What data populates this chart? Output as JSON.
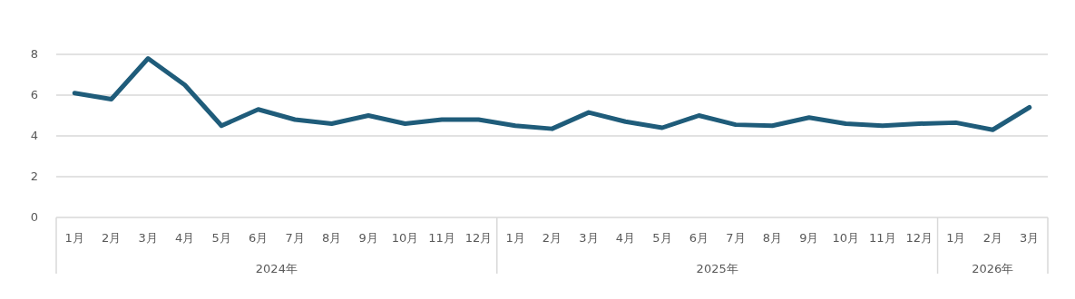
{
  "chart_data": {
    "type": "line",
    "categories": [
      "1月",
      "2月",
      "3月",
      "4月",
      "5月",
      "6月",
      "7月",
      "8月",
      "9月",
      "10月",
      "11月",
      "12月",
      "1月",
      "2月",
      "3月",
      "4月",
      "5月",
      "6月",
      "7月",
      "8月",
      "9月",
      "10月",
      "11月",
      "12月",
      "1月",
      "2月",
      "3月"
    ],
    "series": [
      {
        "color": "#1f5c7a",
        "values": [
          6.1,
          5.8,
          7.8,
          6.5,
          4.5,
          5.3,
          4.8,
          4.6,
          5.0,
          4.6,
          4.8,
          4.8,
          4.5,
          4.35,
          5.15,
          4.7,
          4.4,
          5.0,
          4.55,
          4.5,
          4.9,
          4.6,
          4.5,
          4.6,
          4.65,
          4.3,
          5.4
        ]
      }
    ],
    "annotations": [
      "2024年",
      "2025年",
      "2026年"
    ],
    "ylim": [
      0,
      8
    ],
    "yticks": [
      0,
      2,
      4,
      6,
      8
    ],
    "grid": "y",
    "marker": "none",
    "line_style": "solid"
  }
}
